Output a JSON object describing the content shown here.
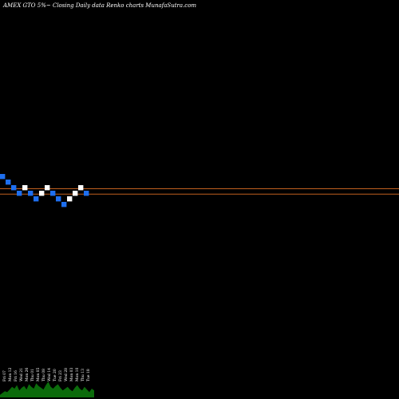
{
  "chart_data": {
    "type": "renko",
    "title": "AMEX  GTO 5%~  Closing Daily data  Renko  charts MunafaSutra.com",
    "colors": {
      "background": "#000000",
      "up_brick": "#ffffff",
      "down_brick": "#1e6ff0",
      "price_line": "#c0601f",
      "volume": "#0b6b0b"
    },
    "bricks": [
      {
        "dir": "down",
        "level": 0
      },
      {
        "dir": "down",
        "level": -1
      },
      {
        "dir": "down",
        "level": -2
      },
      {
        "dir": "down",
        "level": -3
      },
      {
        "dir": "up",
        "level": -2
      },
      {
        "dir": "down",
        "level": -3
      },
      {
        "dir": "down",
        "level": -4
      },
      {
        "dir": "up",
        "level": -3
      },
      {
        "dir": "up",
        "level": -2
      },
      {
        "dir": "down",
        "level": -3
      },
      {
        "dir": "down",
        "level": -4
      },
      {
        "dir": "down",
        "level": -5
      },
      {
        "dir": "up",
        "level": -4
      },
      {
        "dir": "up",
        "level": -3
      },
      {
        "dir": "up",
        "level": -2
      },
      {
        "dir": "down",
        "level": -3
      }
    ],
    "price_lines": [
      {
        "level": -2.65
      },
      {
        "level": -3.6
      }
    ],
    "date_labels": [
      "Fri 07",
      "Mon 12",
      "Fri 16",
      "Wed 21",
      "Mon 26",
      "Thu 01",
      "Mon 05",
      "Thu 08",
      "Wed 14",
      "Tue 20",
      "Fri 23",
      "Wed 28",
      "Mon 03",
      "Mon 10",
      "Thu 13",
      "Tue 18"
    ],
    "volume": [
      3,
      5,
      7,
      6,
      9,
      12,
      10,
      14,
      8,
      11,
      13,
      9,
      15,
      12,
      10,
      16,
      13,
      11,
      9,
      14,
      18,
      12,
      10,
      13,
      15,
      11,
      8,
      10,
      12,
      9,
      7,
      11,
      14,
      10,
      8,
      12,
      9,
      6,
      10,
      8
    ]
  }
}
